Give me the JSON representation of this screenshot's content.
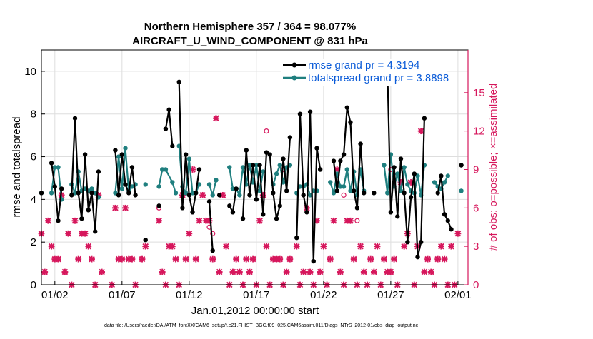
{
  "chart_data": {
    "type": "line",
    "title_line1": "Northern Hemisphere 357 / 364 = 98.077%",
    "title_line2": "AIRCRAFT_U_WIND_COMPONENT @ 831 hPa",
    "xlabel": "Jan.01,2012 00:00:00 start",
    "ylabel_left": "rmse and totalspread",
    "ylabel_right": "# of obs: o=possible; ×=assimilated",
    "footer": "data file: /Users/raeder/DAI/ATM_forcXX/CAM6_setup/f.e21.FHIST_BGC.f09_025.CAM6assim.011/Diags_NTrS_2012-01/obs_diag_output.nc",
    "x_range": [
      0,
      31.75
    ],
    "x_ticks": [
      {
        "label": "01/02",
        "value": 1
      },
      {
        "label": "01/07",
        "value": 6
      },
      {
        "label": "01/12",
        "value": 11
      },
      {
        "label": "01/17",
        "value": 16
      },
      {
        "label": "01/22",
        "value": 21
      },
      {
        "label": "01/27",
        "value": 26
      },
      {
        "label": "02/01",
        "value": 31
      }
    ],
    "y_left": {
      "min": 0,
      "max": 11,
      "ticks": [
        "0",
        "2",
        "4",
        "6",
        "8",
        "10"
      ]
    },
    "y_right": {
      "min": 0,
      "max": 18.333,
      "ticks": [
        "0",
        "3",
        "6",
        "9",
        "12",
        "15"
      ]
    },
    "series": [
      {
        "name": "rmse grand pr = 4.3194",
        "color": "#000000",
        "points": [
          [
            0.0,
            4.3
          ],
          null,
          [
            0.75,
            5.7
          ],
          [
            1.0,
            4.6
          ],
          [
            1.25,
            3.0
          ],
          [
            1.5,
            4.5
          ],
          null,
          [
            2.25,
            4.2
          ],
          [
            2.5,
            7.8
          ],
          [
            2.75,
            4.3
          ],
          [
            3.0,
            3.1
          ],
          [
            3.25,
            6.1
          ],
          [
            3.5,
            3.5
          ],
          [
            3.75,
            4.3
          ],
          [
            4.0,
            2.5
          ],
          [
            4.25,
            5.3
          ],
          null,
          [
            5.5,
            6.3
          ],
          [
            5.75,
            4.2
          ],
          [
            6.0,
            6.1
          ],
          [
            6.25,
            4.7
          ],
          [
            6.5,
            4.3
          ],
          [
            6.75,
            5.5
          ],
          [
            7.0,
            4.2
          ],
          null,
          [
            7.75,
            2.1
          ],
          null,
          [
            8.75,
            3.7
          ],
          null,
          [
            9.25,
            7.3
          ],
          [
            9.5,
            8.2
          ],
          [
            9.75,
            6.5
          ],
          null,
          [
            10.25,
            9.5
          ],
          [
            10.5,
            3.6
          ],
          [
            10.75,
            6.1
          ],
          [
            11.0,
            4.2
          ],
          [
            11.25,
            3.4
          ],
          [
            11.5,
            4.3
          ],
          [
            11.75,
            5.4
          ],
          null,
          [
            12.5,
            3.9
          ],
          [
            12.75,
            1.6
          ],
          null,
          [
            13.25,
            4.2
          ],
          null,
          [
            14.0,
            3.7
          ],
          [
            14.25,
            3.4
          ],
          [
            14.5,
            4.5
          ],
          null,
          [
            15.0,
            3.1
          ],
          [
            15.25,
            6.3
          ],
          [
            15.5,
            4.2
          ],
          [
            15.75,
            5.6
          ],
          [
            16.0,
            4.0
          ],
          [
            16.25,
            5.6
          ],
          [
            16.5,
            3.3
          ],
          [
            16.75,
            6.2
          ],
          [
            17.0,
            6.1
          ],
          [
            17.25,
            4.3
          ],
          [
            17.5,
            3.1
          ],
          [
            17.75,
            3.7
          ],
          [
            18.0,
            5.9
          ],
          [
            18.25,
            4.4
          ],
          [
            18.5,
            6.9
          ],
          null,
          [
            19.0,
            2.2
          ],
          [
            19.25,
            8.0
          ],
          [
            19.5,
            4.2
          ],
          [
            19.75,
            3.4
          ],
          [
            20.0,
            8.1
          ],
          [
            20.25,
            1.1
          ],
          [
            20.5,
            6.4
          ],
          [
            20.75,
            5.4
          ],
          null,
          [
            21.75,
            5.8
          ],
          [
            22.0,
            4.4
          ],
          [
            22.25,
            5.8
          ],
          [
            22.5,
            6.1
          ],
          [
            22.75,
            8.3
          ],
          [
            23.0,
            7.6
          ],
          [
            23.25,
            4.4
          ],
          [
            23.5,
            3.6
          ],
          [
            23.75,
            6.6
          ],
          [
            24.0,
            4.3
          ],
          null,
          [
            24.75,
            4.3
          ],
          null,
          [
            25.75,
            10.1
          ],
          [
            26.0,
            3.4
          ],
          [
            26.25,
            5.5
          ],
          [
            26.5,
            3.2
          ],
          [
            26.75,
            5.9
          ],
          [
            27.0,
            4.3
          ],
          [
            27.25,
            2.0
          ],
          [
            27.5,
            4.1
          ],
          [
            27.75,
            5.2
          ],
          [
            28.0,
            1.3
          ],
          [
            28.25,
            2.0
          ],
          [
            28.5,
            7.8
          ],
          null,
          [
            29.5,
            4.3
          ],
          [
            29.75,
            5.1
          ],
          [
            30.0,
            3.3
          ],
          [
            30.25,
            3.0
          ],
          [
            30.5,
            2.6
          ],
          null,
          [
            31.25,
            5.6
          ]
        ]
      },
      {
        "name": "totalspread grand pr = 3.8898",
        "color": "#1f7f7f",
        "points": [
          [
            0.0,
            4.3
          ],
          null,
          [
            0.75,
            4.3
          ],
          [
            1.0,
            5.5
          ],
          [
            1.25,
            5.5
          ],
          [
            1.5,
            4.0
          ],
          null,
          [
            2.25,
            4.7
          ],
          [
            2.5,
            4.3
          ],
          [
            2.75,
            5.3
          ],
          [
            3.0,
            4.4
          ],
          [
            3.25,
            4.5
          ],
          [
            3.5,
            4.4
          ],
          [
            3.75,
            4.5
          ],
          [
            4.0,
            4.3
          ],
          [
            4.25,
            4.1
          ],
          null,
          [
            5.5,
            4.3
          ],
          [
            5.75,
            6.0
          ],
          [
            6.0,
            4.5
          ],
          [
            6.25,
            6.4
          ],
          [
            6.5,
            4.4
          ],
          [
            6.75,
            4.6
          ],
          [
            7.0,
            4.7
          ],
          null,
          [
            7.75,
            4.7
          ],
          null,
          [
            8.75,
            4.6
          ],
          [
            9.0,
            5.4
          ],
          [
            9.25,
            5.4
          ],
          [
            9.75,
            4.8
          ],
          [
            10.0,
            4.3
          ],
          null,
          [
            10.25,
            6.5
          ],
          [
            10.5,
            4.6
          ],
          [
            10.75,
            4.3
          ],
          [
            11.0,
            5.9
          ],
          [
            11.25,
            4.3
          ],
          [
            11.5,
            4.3
          ],
          [
            11.75,
            4.7
          ],
          null,
          [
            12.5,
            4.7
          ],
          [
            12.75,
            4.2
          ],
          [
            13.0,
            4.9
          ],
          null,
          [
            14.0,
            5.5
          ],
          [
            14.25,
            4.5
          ],
          [
            14.5,
            4.5
          ],
          [
            14.75,
            4.2
          ],
          [
            15.0,
            5.5
          ],
          [
            15.25,
            4.7
          ],
          [
            15.5,
            5.6
          ],
          [
            15.75,
            4.8
          ],
          [
            16.0,
            5.6
          ],
          [
            16.25,
            4.4
          ],
          [
            16.5,
            5.3
          ],
          null,
          [
            17.25,
            4.7
          ],
          [
            17.5,
            5.2
          ],
          [
            17.75,
            5.6
          ],
          [
            18.0,
            4.8
          ],
          [
            18.25,
            5.5
          ],
          [
            18.5,
            5.6
          ],
          null,
          [
            19.0,
            4.3
          ],
          [
            19.25,
            4.6
          ],
          [
            19.5,
            4.6
          ],
          [
            19.75,
            4.7
          ],
          [
            20.0,
            4.2
          ],
          [
            20.25,
            4.4
          ],
          [
            20.5,
            4.4
          ],
          null,
          [
            21.5,
            4.8
          ],
          [
            21.75,
            4.3
          ],
          [
            22.0,
            5.2
          ],
          [
            22.25,
            4.6
          ],
          [
            22.5,
            4.6
          ],
          [
            22.75,
            5.4
          ],
          [
            23.0,
            4.4
          ],
          [
            23.25,
            5.3
          ],
          [
            23.5,
            4.2
          ],
          [
            23.75,
            5.4
          ],
          [
            24.0,
            4.4
          ],
          null,
          [
            25.5,
            5.6
          ],
          [
            25.75,
            4.3
          ],
          [
            26.0,
            6.1
          ],
          [
            26.25,
            4.6
          ],
          [
            26.5,
            5.2
          ],
          [
            26.75,
            4.4
          ],
          [
            27.0,
            5.5
          ],
          [
            27.25,
            4.7
          ],
          [
            27.5,
            4.4
          ],
          [
            27.75,
            4.3
          ],
          [
            28.0,
            5.1
          ],
          [
            28.25,
            4.2
          ],
          [
            28.5,
            5.6
          ],
          null,
          [
            29.25,
            4.8
          ],
          [
            29.5,
            4.6
          ],
          [
            29.75,
            4.5
          ],
          [
            30.0,
            4.8
          ],
          [
            30.25,
            5.1
          ],
          null,
          [
            31.25,
            4.4
          ]
        ]
      }
    ],
    "obs_series": {
      "name": "# of obs",
      "color": "#d6175c",
      "possible": [
        [
          8.75,
          6.0
        ],
        [
          12.5,
          4.5
        ],
        [
          12.75,
          4.0
        ],
        [
          16.75,
          12.0
        ],
        [
          18.0,
          9.0
        ],
        [
          22.5,
          7.0
        ],
        [
          23.5,
          5.0
        ],
        [
          26.0,
          9.0
        ]
      ],
      "assimilated": [
        [
          0.0,
          4.0
        ],
        [
          0.25,
          1.0
        ],
        [
          0.5,
          5.0
        ],
        [
          0.75,
          3.0
        ],
        [
          1.0,
          2.0
        ],
        [
          1.25,
          2.0
        ],
        [
          1.5,
          7.0
        ],
        [
          1.75,
          1.0
        ],
        [
          2.0,
          4.0
        ],
        [
          2.25,
          0.0
        ],
        [
          2.5,
          5.0
        ],
        [
          2.75,
          2.0
        ],
        [
          3.0,
          4.0
        ],
        [
          3.25,
          4.0
        ],
        [
          3.5,
          3.0
        ],
        [
          3.75,
          2.0
        ],
        [
          4.0,
          0.0
        ],
        [
          4.25,
          7.0
        ],
        [
          4.5,
          1.0
        ],
        [
          5.25,
          0.0
        ],
        [
          5.5,
          6.0
        ],
        [
          5.75,
          2.0
        ],
        [
          6.0,
          2.0
        ],
        [
          6.25,
          6.0
        ],
        [
          6.5,
          2.0
        ],
        [
          6.75,
          2.0
        ],
        [
          7.0,
          0.0
        ],
        [
          7.5,
          2.0
        ],
        [
          7.75,
          3.0
        ],
        [
          8.75,
          5.0
        ],
        [
          9.0,
          1.0
        ],
        [
          9.25,
          0.0
        ],
        [
          9.5,
          3.0
        ],
        [
          9.75,
          3.0
        ],
        [
          10.0,
          2.0
        ],
        [
          10.25,
          0.0
        ],
        [
          10.5,
          7.0
        ],
        [
          10.75,
          2.0
        ],
        [
          11.0,
          4.0
        ],
        [
          11.25,
          9.0
        ],
        [
          11.5,
          2.0
        ],
        [
          11.75,
          5.0
        ],
        [
          12.0,
          7.0
        ],
        [
          12.25,
          5.0
        ],
        [
          12.5,
          5.0
        ],
        [
          12.75,
          2.0
        ],
        [
          13.0,
          13.0
        ],
        [
          13.25,
          1.0
        ],
        [
          13.5,
          7.0
        ],
        [
          13.75,
          3.0
        ],
        [
          14.0,
          0.0
        ],
        [
          14.25,
          1.0
        ],
        [
          14.5,
          2.0
        ],
        [
          14.75,
          1.0
        ],
        [
          15.0,
          0.0
        ],
        [
          15.25,
          2.0
        ],
        [
          15.5,
          1.0
        ],
        [
          15.75,
          2.0
        ],
        [
          16.0,
          0.0
        ],
        [
          16.25,
          5.0
        ],
        [
          16.5,
          7.0
        ],
        [
          16.75,
          3.0
        ],
        [
          17.0,
          0.0
        ],
        [
          17.25,
          2.0
        ],
        [
          17.5,
          2.0
        ],
        [
          17.75,
          2.0
        ],
        [
          18.0,
          0.0
        ],
        [
          18.25,
          1.0
        ],
        [
          18.5,
          2.0
        ],
        [
          19.0,
          3.0
        ],
        [
          19.25,
          0.0
        ],
        [
          19.5,
          1.0
        ],
        [
          19.75,
          6.0
        ],
        [
          20.0,
          1.0
        ],
        [
          20.25,
          0.0
        ],
        [
          20.5,
          5.0
        ],
        [
          20.75,
          1.0
        ],
        [
          21.0,
          3.0
        ],
        [
          21.25,
          0.0
        ],
        [
          21.5,
          2.0
        ],
        [
          21.75,
          5.0
        ],
        [
          22.0,
          9.0
        ],
        [
          22.25,
          1.0
        ],
        [
          22.5,
          0.0
        ],
        [
          22.75,
          5.0
        ],
        [
          23.0,
          5.0
        ],
        [
          23.25,
          2.0
        ],
        [
          23.5,
          0.0
        ],
        [
          23.75,
          3.0
        ],
        [
          24.0,
          1.0
        ],
        [
          24.25,
          0.0
        ],
        [
          24.5,
          2.0
        ],
        [
          24.75,
          1.0
        ],
        [
          25.0,
          3.0
        ],
        [
          25.25,
          0.0
        ],
        [
          25.5,
          2.0
        ],
        [
          25.75,
          1.0
        ],
        [
          26.0,
          1.0
        ],
        [
          26.25,
          2.0
        ],
        [
          26.5,
          0.0
        ],
        [
          26.75,
          8.0
        ],
        [
          27.0,
          3.0
        ],
        [
          27.25,
          4.0
        ],
        [
          27.5,
          8.0
        ],
        [
          27.75,
          0.0
        ],
        [
          28.0,
          3.0
        ],
        [
          28.25,
          12.0
        ],
        [
          28.5,
          1.0
        ],
        [
          28.75,
          2.0
        ],
        [
          29.0,
          1.0
        ],
        [
          29.25,
          0.0
        ],
        [
          29.5,
          2.0
        ],
        [
          29.75,
          3.0
        ],
        [
          30.0,
          2.0
        ],
        [
          30.25,
          0.0
        ],
        [
          30.5,
          3.0
        ],
        [
          30.75,
          0.0
        ],
        [
          31.0,
          4.0
        ]
      ]
    }
  }
}
